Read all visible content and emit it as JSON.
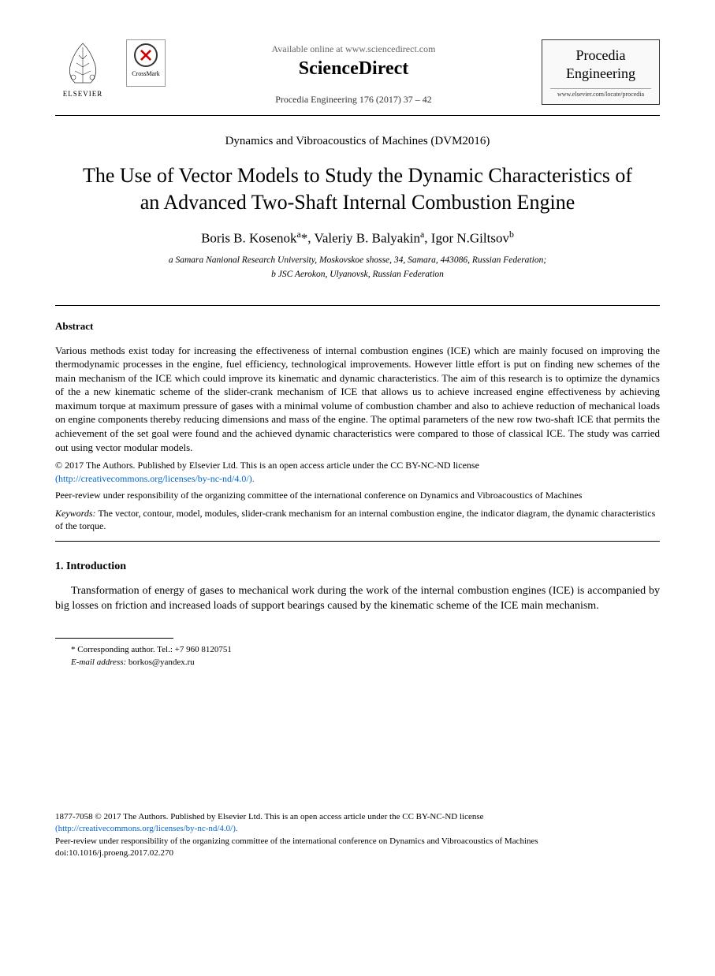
{
  "header": {
    "elsevier_label": "ELSEVIER",
    "crossmark_label": "CrossMark",
    "available_text": "Available online at www.sciencedirect.com",
    "sciencedirect": "ScienceDirect",
    "citation": "Procedia Engineering 176 (2017) 37 – 42",
    "journal_line1": "Procedia",
    "journal_line2": "Engineering",
    "locate_url": "www.elsevier.com/locate/procedia"
  },
  "conference": "Dynamics and Vibroacoustics of Machines (DVM2016)",
  "title": "The Use of Vector Models to Study the Dynamic Characteristics of an Advanced Two-Shaft Internal Combustion Engine",
  "authors_html": "Boris B. Kosenok<sup>a</sup>*, Valeriy B. Balyakin<sup>a</sup>, Igor N.Giltsov<sup>b</sup>",
  "affiliations": {
    "a": "a Samara Nanional Research University, Moskovskoe shosse, 34, Samara, 443086, Russian Federation;",
    "b": "b JSC Aerokon, Ulyanovsk, Russian Federation"
  },
  "abstract": {
    "heading": "Abstract",
    "text": "Various methods exist today for increasing the effectiveness of internal combustion engines (ICE) which are mainly focused on improving the thermodynamic processes in the engine, fuel efficiency, technological improvements. However little effort is put on finding new schemes of the main mechanism of the ICE which could improve its kinematic and dynamic characteristics. The aim of this research is to optimize the dynamics of the a new kinematic scheme of the slider-crank mechanism of ICE that allows us to achieve increased engine effectiveness by achieving maximum torque at maximum pressure of gases with a minimal volume of combustion chamber and also to achieve reduction of mechanical loads on engine components thereby reducing dimensions and mass of the engine. The optimal parameters of the new row two-shaft ICE that permits the achievement of the set goal were found and the achieved dynamic characteristics were compared to those of classical ICE. The study was carried out using vector modular models.",
    "copyright": "© 2017 The Authors. Published by Elsevier Ltd. This is an open access article under the CC BY-NC-ND license",
    "license_url": "(http://creativecommons.org/licenses/by-nc-nd/4.0/).",
    "peer_review": "Peer-review under responsibility of the organizing committee of the international conference on Dynamics and Vibroacoustics of Machines",
    "keywords_label": "Keywords:",
    "keywords_text": " The vector, contour, model, modules, slider-crank mechanism for an internal combustion engine, the indicator diagram, the dynamic characteristics of the torque."
  },
  "section1": {
    "heading": "1. Introduction",
    "para": "Transformation of energy of gases to mechanical work during the work of the internal combustion engines (ICE) is accompanied by big losses on friction and increased loads of support bearings caused by the kinematic scheme of the ICE main mechanism."
  },
  "footnote": {
    "corresponding": "* Corresponding author. Tel.: +7 960 8120751",
    "email_label": "E-mail address:",
    "email": " borkos@yandex.ru"
  },
  "footer": {
    "issn_line": "1877-7058 © 2017 The Authors. Published by Elsevier Ltd. This is an open access article under the CC BY-NC-ND license",
    "license_url": "(http://creativecommons.org/licenses/by-nc-nd/4.0/).",
    "peer_review": "Peer-review under responsibility of the organizing committee of the international conference on Dynamics and Vibroacoustics of Machines",
    "doi": "doi:10.1016/j.proeng.2017.02.270"
  },
  "colors": {
    "text": "#000000",
    "link": "#0066cc",
    "muted": "#666666",
    "border": "#000000",
    "background": "#ffffff"
  },
  "typography": {
    "body_font": "Times New Roman",
    "title_size_pt": 20,
    "author_size_pt": 13,
    "abstract_size_pt": 10,
    "body_size_pt": 11,
    "footnote_size_pt": 8
  }
}
